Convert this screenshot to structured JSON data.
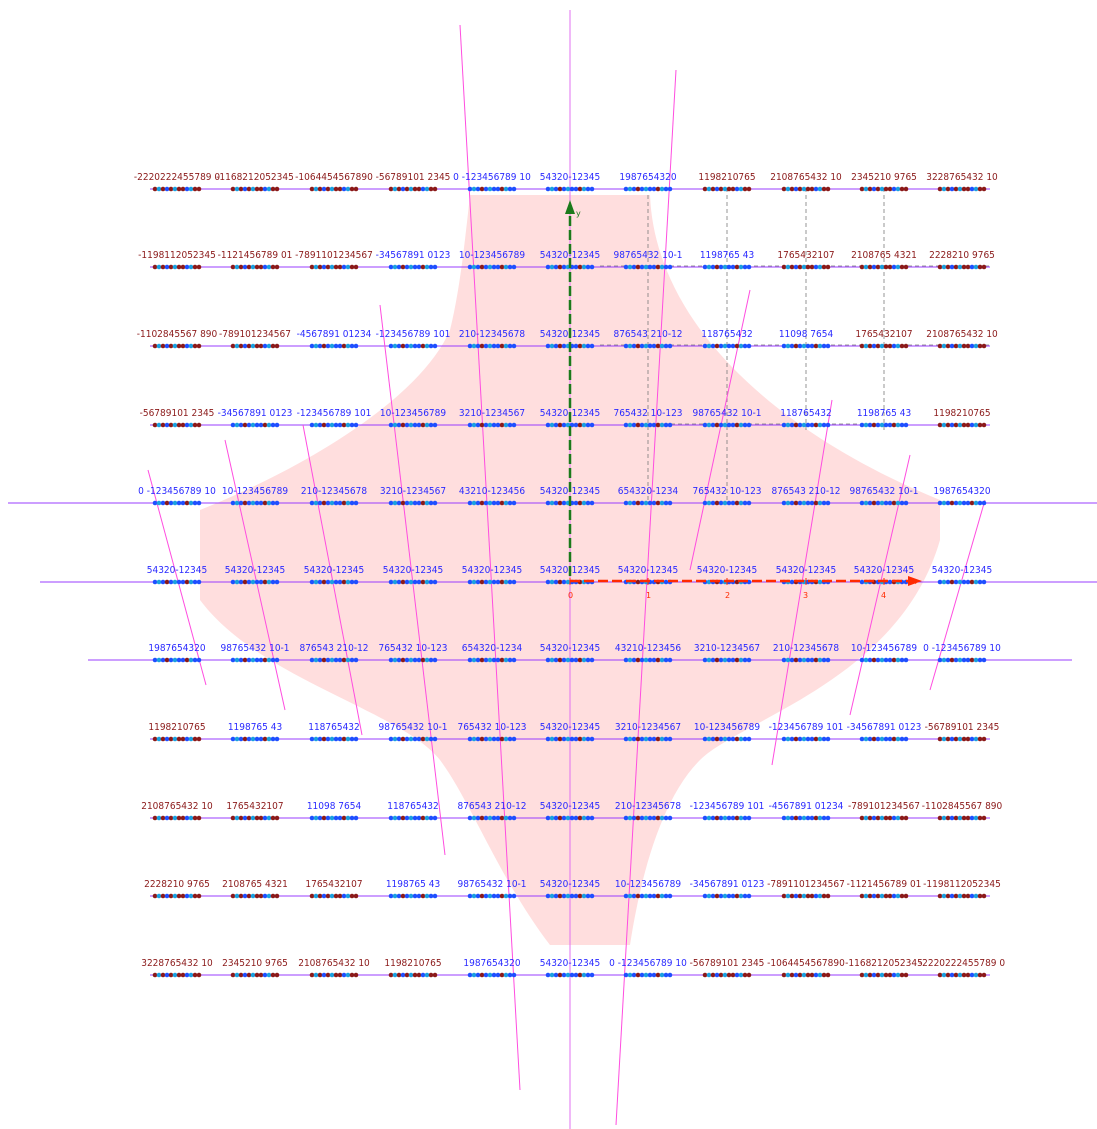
{
  "diagram": {
    "colors": {
      "background": "#ffffff",
      "region_fill": "#ffdede",
      "vertical_axis": "#e070f0",
      "horizontal_line": "#9a3cff",
      "slanted_line": "#ff4de0",
      "dashed_guide": "#7a7a7a",
      "label_blue": "#2a2aff",
      "label_dark_red": "#8b1a1a",
      "label_cyan": "#18a8e8",
      "dot_blue": "#1f4fff",
      "dot_dark_red": "#8b1a1a",
      "dot_cyan": "#1aa0e0",
      "y_axis_arrow": "#1b7a1b",
      "x_axis_arrow": "#ff2a00"
    },
    "axis": {
      "x_label": "x",
      "y_label": "y",
      "ticks": [
        "0",
        "1",
        "2",
        "3",
        "4"
      ]
    },
    "grid_labels": [
      [
        "-2220222455789 0",
        "-1168212052345",
        "-1064454567890",
        "-56789101 2345",
        "0 -123456789 10",
        "54320-12345",
        "1987654320",
        "1198210765",
        "2108765432 10",
        "2345210 9765",
        "3228765432 10"
      ],
      [
        "-1198112052345",
        "-1121456789 01",
        "-7891101234567",
        "-34567891 0123",
        "10-123456789",
        "54320-12345",
        "98765432 10-1",
        "1198765 43",
        "1765432107",
        "2108765 4321",
        "2228210 9765"
      ],
      [
        "-1102845567 890",
        "-789101234567",
        "-4567891 01234",
        "-123456789 101",
        "210-12345678",
        "54320-12345",
        "876543 210-12",
        "118765432",
        "11098 7654",
        "1765432107",
        "2108765432 10"
      ],
      [
        "-56789101 2345",
        "-34567891 0123",
        "-123456789 101",
        "10-123456789",
        "3210-1234567",
        "54320-12345",
        "765432 10-123",
        "98765432 10-1",
        "118765432",
        "1198765 43",
        "1198210765"
      ],
      [
        "0 -123456789 10",
        "10-123456789",
        "210-12345678",
        "3210-1234567",
        "43210-123456",
        "54320-12345",
        "654320-1234",
        "765432 10-123",
        "876543 210-12",
        "98765432 10-1",
        "1987654320"
      ],
      [
        "54320-12345",
        "54320-12345",
        "54320-12345",
        "54320-12345",
        "54320-12345",
        "54320-12345",
        "54320-12345",
        "54320-12345",
        "54320-12345",
        "54320-12345",
        "54320-12345"
      ],
      [
        "1987654320",
        "98765432 10-1",
        "876543 210-12",
        "765432 10-123",
        "654320-1234",
        "54320-12345",
        "43210-123456",
        "3210-1234567",
        "210-12345678",
        "10-123456789",
        "0 -123456789 10"
      ],
      [
        "1198210765",
        "1198765 43",
        "118765432",
        "98765432 10-1",
        "765432 10-123",
        "54320-12345",
        "3210-1234567",
        "10-123456789",
        "-123456789 101",
        "-34567891 0123",
        "-56789101 2345"
      ],
      [
        "2108765432 10",
        "1765432107",
        "11098 7654",
        "118765432",
        "876543 210-12",
        "54320-12345",
        "210-12345678",
        "-123456789 101",
        "-4567891 01234",
        "-789101234567",
        "-1102845567 890"
      ],
      [
        "2228210 9765",
        "2108765 4321",
        "1765432107",
        "1198765 43",
        "98765432 10-1",
        "54320-12345",
        "10-123456789",
        "-34567891 0123",
        "-7891101234567",
        "-1121456789 01",
        "-1198112052345"
      ],
      [
        "3228765432 10",
        "2345210 9765",
        "2108765432 10",
        "1198210765",
        "1987654320",
        "54320-12345",
        "0 -123456789 10",
        "-56789101 2345",
        "-1064454567890",
        "-1168212052345",
        "-2220222455789 0"
      ]
    ]
  }
}
